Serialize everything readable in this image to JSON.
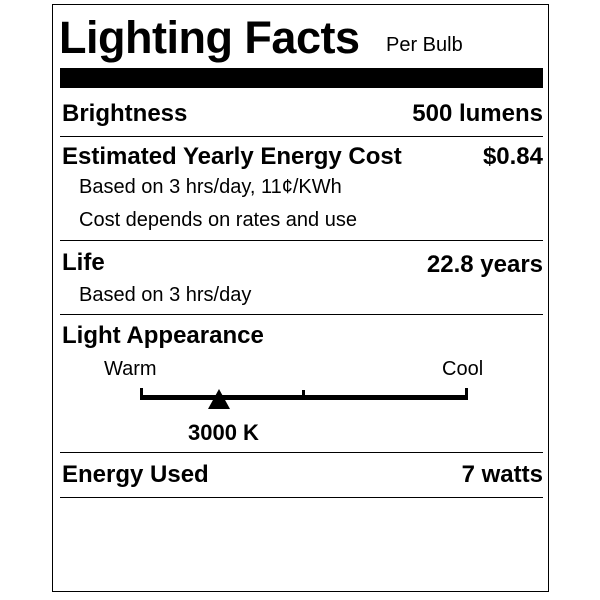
{
  "title": "Lighting Facts",
  "subtitle": "Per Bulb",
  "brightness": {
    "label": "Brightness",
    "value": "500 lumens"
  },
  "energy_cost": {
    "label": "Estimated Yearly Energy Cost",
    "value": "$0.84",
    "note1": "Based on 3 hrs/day, 11¢/KWh",
    "note2": "Cost depends on rates and use"
  },
  "life": {
    "label": "Life",
    "value": "22.8 years",
    "note": "Based on 3 hrs/day"
  },
  "light_appearance": {
    "label": "Light Appearance",
    "warm_label": "Warm",
    "cool_label": "Cool",
    "value": "3000 K",
    "marker_fraction": 0.24
  },
  "energy_used": {
    "label": "Energy Used",
    "value": "7 watts"
  }
}
